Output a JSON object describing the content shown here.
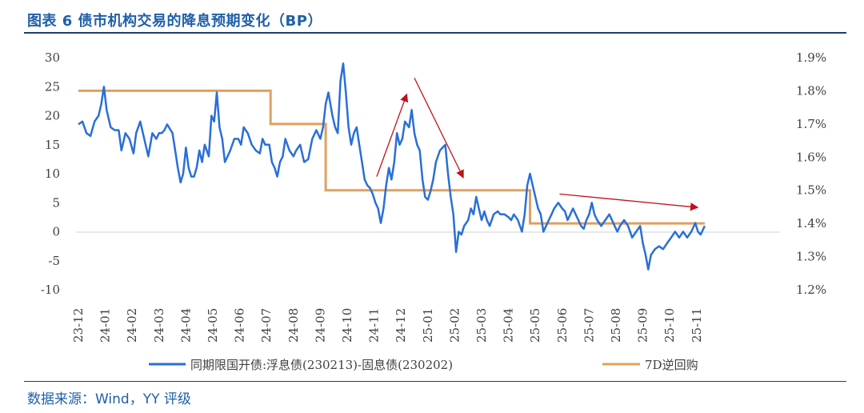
{
  "title": "图表 6 债市机构交易的降息预期变化（BP）",
  "source": "数据来源：Wind，YY 评级",
  "colors": {
    "spread": "#2a6fd6",
    "repo": "#e0a060",
    "arrow": "#c0121b",
    "title": "#1f5fa8"
  },
  "chart_data": {
    "type": "line",
    "x_tick_labels": [
      "23-12",
      "24-01",
      "24-02",
      "24-03",
      "24-04",
      "24-05",
      "24-06",
      "24-07",
      "24-08",
      "24-09",
      "24-10",
      "24-11",
      "24-12",
      "25-01",
      "25-02",
      "25-03",
      "25-04",
      "25-05",
      "25-06",
      "25-07",
      "25-08",
      "25-09",
      "25-10",
      "25-11"
    ],
    "y_left": {
      "ticks": [
        30,
        25,
        20,
        15,
        10,
        5,
        0,
        -5,
        -10
      ],
      "ylim": [
        -10,
        30
      ]
    },
    "y_right": {
      "ticks": [
        "1.9%",
        "1.8%",
        "1.7%",
        "1.6%",
        "1.5%",
        "1.4%",
        "1.3%",
        "1.2%"
      ],
      "ylim": [
        1.2,
        1.9
      ]
    },
    "series": [
      {
        "name": "同期限国开债:浮息债(230213)-固息债(230202)",
        "axis": "left",
        "points": [
          [
            0,
            18.5
          ],
          [
            0.15,
            19
          ],
          [
            0.3,
            17
          ],
          [
            0.45,
            16.5
          ],
          [
            0.6,
            19
          ],
          [
            0.75,
            20
          ],
          [
            0.85,
            22
          ],
          [
            0.95,
            25
          ],
          [
            1.05,
            21
          ],
          [
            1.2,
            18
          ],
          [
            1.35,
            17.5
          ],
          [
            1.5,
            17.5
          ],
          [
            1.6,
            14
          ],
          [
            1.75,
            17
          ],
          [
            1.9,
            16
          ],
          [
            2.05,
            13.5
          ],
          [
            2.15,
            17
          ],
          [
            2.3,
            19
          ],
          [
            2.45,
            16
          ],
          [
            2.6,
            13
          ],
          [
            2.75,
            17
          ],
          [
            2.9,
            16
          ],
          [
            3.0,
            17
          ],
          [
            3.1,
            17
          ],
          [
            3.2,
            17.5
          ],
          [
            3.3,
            18.5
          ],
          [
            3.5,
            17
          ],
          [
            3.6,
            14
          ],
          [
            3.7,
            11
          ],
          [
            3.8,
            8.5
          ],
          [
            3.9,
            10
          ],
          [
            4.0,
            14.5
          ],
          [
            4.1,
            11
          ],
          [
            4.2,
            9.5
          ],
          [
            4.3,
            9.5
          ],
          [
            4.4,
            11
          ],
          [
            4.5,
            14
          ],
          [
            4.6,
            12
          ],
          [
            4.7,
            15
          ],
          [
            4.85,
            13
          ],
          [
            4.95,
            20
          ],
          [
            5.05,
            19
          ],
          [
            5.15,
            24
          ],
          [
            5.25,
            18
          ],
          [
            5.35,
            16
          ],
          [
            5.45,
            12
          ],
          [
            5.55,
            13
          ],
          [
            5.65,
            14
          ],
          [
            5.8,
            16
          ],
          [
            5.95,
            16
          ],
          [
            6.05,
            15
          ],
          [
            6.15,
            18
          ],
          [
            6.3,
            17
          ],
          [
            6.45,
            15
          ],
          [
            6.6,
            14
          ],
          [
            6.75,
            13.5
          ],
          [
            6.85,
            16
          ],
          [
            6.95,
            15
          ],
          [
            7.1,
            15
          ],
          [
            7.2,
            12
          ],
          [
            7.3,
            11
          ],
          [
            7.4,
            9.5
          ],
          [
            7.5,
            12
          ],
          [
            7.6,
            13
          ],
          [
            7.7,
            16
          ],
          [
            7.85,
            14
          ],
          [
            8.0,
            13
          ],
          [
            8.1,
            14
          ],
          [
            8.25,
            15
          ],
          [
            8.4,
            12
          ],
          [
            8.55,
            12.5
          ],
          [
            8.7,
            16
          ],
          [
            8.85,
            17.5
          ],
          [
            9.0,
            16
          ],
          [
            9.1,
            18
          ],
          [
            9.2,
            22
          ],
          [
            9.3,
            24
          ],
          [
            9.45,
            20
          ],
          [
            9.55,
            18
          ],
          [
            9.65,
            17
          ],
          [
            9.75,
            26
          ],
          [
            9.85,
            29
          ],
          [
            9.95,
            24
          ],
          [
            10.05,
            18
          ],
          [
            10.15,
            15
          ],
          [
            10.25,
            17
          ],
          [
            10.35,
            18
          ],
          [
            10.45,
            15
          ],
          [
            10.55,
            12
          ],
          [
            10.65,
            9
          ],
          [
            10.75,
            8
          ],
          [
            10.85,
            7.5
          ],
          [
            10.95,
            6.5
          ],
          [
            11.05,
            5
          ],
          [
            11.15,
            4
          ],
          [
            11.25,
            1.5
          ],
          [
            11.35,
            4
          ],
          [
            11.45,
            8
          ],
          [
            11.55,
            11
          ],
          [
            11.65,
            9
          ],
          [
            11.75,
            12
          ],
          [
            11.85,
            17
          ],
          [
            11.95,
            15
          ],
          [
            12.05,
            16
          ],
          [
            12.15,
            19
          ],
          [
            12.3,
            18
          ],
          [
            12.4,
            21
          ],
          [
            12.5,
            17
          ],
          [
            12.6,
            15
          ],
          [
            12.7,
            14
          ],
          [
            12.8,
            9
          ],
          [
            12.9,
            6
          ],
          [
            13.0,
            5.5
          ],
          [
            13.1,
            7
          ],
          [
            13.2,
            9
          ],
          [
            13.3,
            12
          ],
          [
            13.45,
            14
          ],
          [
            13.55,
            14.5
          ],
          [
            13.65,
            15
          ],
          [
            13.75,
            10
          ],
          [
            13.85,
            6
          ],
          [
            13.95,
            3
          ],
          [
            14.05,
            -3.5
          ],
          [
            14.15,
            0
          ],
          [
            14.25,
            -0.5
          ],
          [
            14.35,
            1
          ],
          [
            14.5,
            2
          ],
          [
            14.6,
            4
          ],
          [
            14.7,
            3
          ],
          [
            14.8,
            6
          ],
          [
            14.9,
            4
          ],
          [
            15.0,
            2
          ],
          [
            15.1,
            3.5
          ],
          [
            15.2,
            2
          ],
          [
            15.3,
            1
          ],
          [
            15.45,
            3
          ],
          [
            15.6,
            3.5
          ],
          [
            15.7,
            3
          ],
          [
            15.85,
            3
          ],
          [
            16.0,
            2.5
          ],
          [
            16.1,
            2
          ],
          [
            16.2,
            3
          ],
          [
            16.35,
            2
          ],
          [
            16.5,
            0
          ],
          [
            16.6,
            3
          ],
          [
            16.7,
            8
          ],
          [
            16.8,
            10
          ],
          [
            16.9,
            8
          ],
          [
            17.0,
            6
          ],
          [
            17.1,
            4
          ],
          [
            17.2,
            3
          ],
          [
            17.3,
            0
          ],
          [
            17.4,
            1
          ],
          [
            17.5,
            2
          ],
          [
            17.6,
            3
          ],
          [
            17.7,
            4
          ],
          [
            17.85,
            5
          ],
          [
            18.0,
            4
          ],
          [
            18.1,
            3.5
          ],
          [
            18.2,
            2
          ],
          [
            18.3,
            3
          ],
          [
            18.4,
            4
          ],
          [
            18.5,
            3
          ],
          [
            18.6,
            2
          ],
          [
            18.7,
            1
          ],
          [
            18.8,
            0.5
          ],
          [
            18.9,
            2
          ],
          [
            19.0,
            3
          ],
          [
            19.1,
            5
          ],
          [
            19.2,
            3
          ],
          [
            19.3,
            2
          ],
          [
            19.45,
            1
          ],
          [
            19.6,
            2
          ],
          [
            19.75,
            3
          ],
          [
            19.85,
            2
          ],
          [
            19.95,
            1
          ],
          [
            20.05,
            0
          ],
          [
            20.15,
            1
          ],
          [
            20.3,
            2
          ],
          [
            20.45,
            1
          ],
          [
            20.6,
            -1
          ],
          [
            20.75,
            0
          ],
          [
            20.9,
            1
          ],
          [
            21.0,
            -2
          ],
          [
            21.1,
            -4
          ],
          [
            21.2,
            -6.5
          ],
          [
            21.3,
            -4
          ],
          [
            21.45,
            -3
          ],
          [
            21.6,
            -2.5
          ],
          [
            21.75,
            -3
          ],
          [
            21.9,
            -2
          ],
          [
            22.05,
            -1
          ],
          [
            22.2,
            0
          ],
          [
            22.35,
            -1
          ],
          [
            22.5,
            0
          ],
          [
            22.65,
            -1
          ],
          [
            22.8,
            0
          ],
          [
            22.95,
            1.5
          ],
          [
            23.05,
            0
          ],
          [
            23.15,
            -0.5
          ],
          [
            23.3,
            1
          ]
        ]
      },
      {
        "name": "7D逆回购",
        "axis": "right",
        "points": [
          [
            0,
            1.8
          ],
          [
            7.15,
            1.8
          ],
          [
            7.15,
            1.7
          ],
          [
            9.2,
            1.7
          ],
          [
            9.2,
            1.5
          ],
          [
            16.8,
            1.5
          ],
          [
            16.8,
            1.4
          ],
          [
            23.3,
            1.4
          ]
        ]
      }
    ],
    "annotations": [
      {
        "type": "arrow",
        "from": [
          11.1,
          9.5
        ],
        "to": [
          12.2,
          23.5
        ]
      },
      {
        "type": "arrow",
        "from": [
          12.5,
          26.5
        ],
        "to": [
          14.3,
          9.5
        ]
      },
      {
        "type": "arrow",
        "from": [
          17.9,
          6.5
        ],
        "to": [
          23.0,
          4.2
        ]
      }
    ]
  }
}
